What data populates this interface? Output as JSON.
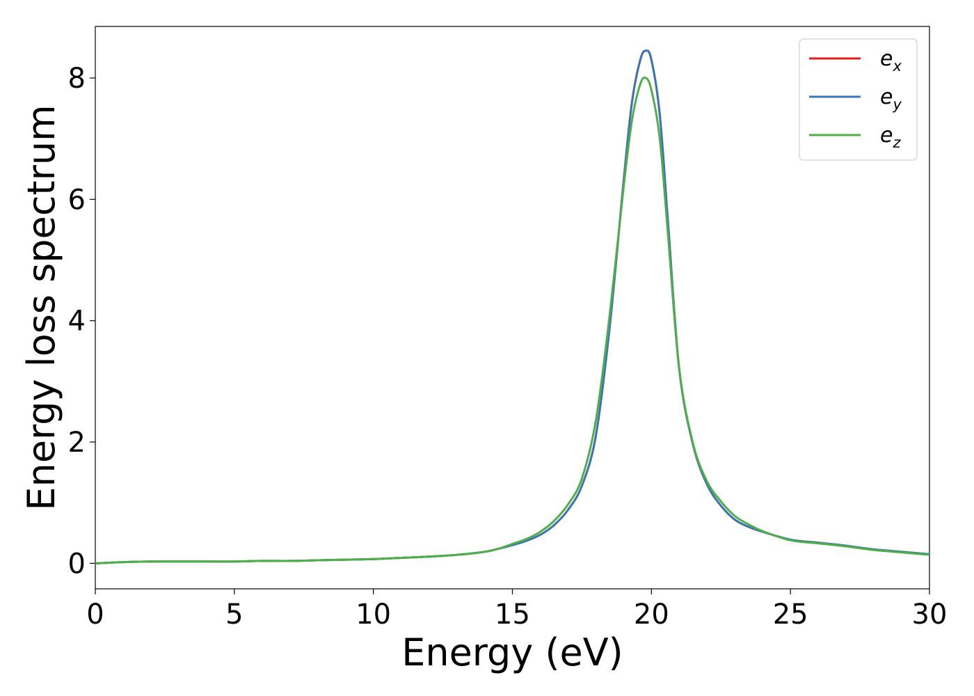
{
  "chart_data": {
    "type": "line",
    "xlabel": "Energy (eV)",
    "ylabel": "Energy loss spectrum",
    "xlim": [
      0,
      30
    ],
    "ylim": [
      -0.42,
      8.85
    ],
    "xticks": [
      0,
      5,
      10,
      15,
      20,
      25,
      30
    ],
    "yticks": [
      0,
      2,
      4,
      6,
      8
    ],
    "xtick_labels": [
      "0",
      "5",
      "10",
      "15",
      "20",
      "25",
      "30"
    ],
    "ytick_labels": [
      "0",
      "2",
      "4",
      "6",
      "8"
    ],
    "grid": false,
    "legend_position": "top-right",
    "series": [
      {
        "name": "e_x",
        "legend_base": "e",
        "legend_sub": "x",
        "color": "#e41a1c",
        "x": [
          0,
          0.5,
          1,
          2,
          3,
          4,
          5,
          6,
          7,
          8,
          9,
          10,
          11,
          12,
          13,
          14,
          14.5,
          15,
          15.5,
          16,
          16.5,
          17,
          17.5,
          18,
          18.5,
          19,
          19.3,
          19.6,
          19.8,
          20,
          20.3,
          20.6,
          21,
          21.5,
          22,
          22.5,
          23,
          23.5,
          24,
          25,
          26,
          27,
          28,
          29,
          30
        ],
        "y": [
          0.0,
          0.01,
          0.02,
          0.03,
          0.03,
          0.03,
          0.03,
          0.04,
          0.04,
          0.05,
          0.06,
          0.07,
          0.09,
          0.11,
          0.14,
          0.19,
          0.24,
          0.3,
          0.37,
          0.47,
          0.63,
          0.88,
          1.28,
          2.1,
          3.9,
          6.3,
          7.6,
          8.3,
          8.45,
          8.3,
          7.4,
          5.6,
          3.2,
          1.95,
          1.3,
          0.95,
          0.72,
          0.6,
          0.52,
          0.39,
          0.34,
          0.29,
          0.23,
          0.19,
          0.15
        ]
      },
      {
        "name": "e_y",
        "legend_base": "e",
        "legend_sub": "y",
        "color": "#3a77b5",
        "x": [
          0,
          0.5,
          1,
          2,
          3,
          4,
          5,
          6,
          7,
          8,
          9,
          10,
          11,
          12,
          13,
          14,
          14.5,
          15,
          15.5,
          16,
          16.5,
          17,
          17.5,
          18,
          18.5,
          19,
          19.3,
          19.6,
          19.8,
          20,
          20.3,
          20.6,
          21,
          21.5,
          22,
          22.5,
          23,
          23.5,
          24,
          25,
          26,
          27,
          28,
          29,
          30
        ],
        "y": [
          0.0,
          0.01,
          0.02,
          0.03,
          0.03,
          0.03,
          0.03,
          0.04,
          0.04,
          0.05,
          0.06,
          0.07,
          0.09,
          0.11,
          0.14,
          0.19,
          0.24,
          0.3,
          0.37,
          0.47,
          0.63,
          0.88,
          1.28,
          2.1,
          3.9,
          6.3,
          7.6,
          8.3,
          8.45,
          8.3,
          7.4,
          5.6,
          3.2,
          1.95,
          1.3,
          0.95,
          0.72,
          0.6,
          0.52,
          0.39,
          0.34,
          0.29,
          0.23,
          0.19,
          0.15
        ]
      },
      {
        "name": "e_z",
        "legend_base": "e",
        "legend_sub": "z",
        "color": "#4daf4a",
        "x": [
          0,
          0.5,
          1,
          2,
          3,
          4,
          5,
          6,
          7,
          8,
          9,
          10,
          11,
          12,
          13,
          14,
          14.5,
          15,
          15.5,
          16,
          16.5,
          17,
          17.5,
          18,
          18.5,
          19,
          19.3,
          19.6,
          19.8,
          20,
          20.3,
          20.6,
          21,
          21.5,
          22,
          22.5,
          23,
          23.5,
          24,
          25,
          26,
          27,
          28,
          29,
          30
        ],
        "y": [
          0.0,
          0.01,
          0.02,
          0.03,
          0.03,
          0.03,
          0.03,
          0.04,
          0.04,
          0.05,
          0.06,
          0.07,
          0.09,
          0.11,
          0.14,
          0.19,
          0.24,
          0.32,
          0.4,
          0.52,
          0.7,
          0.97,
          1.4,
          2.35,
          4.1,
          6.2,
          7.3,
          7.9,
          8.0,
          7.8,
          7.0,
          5.4,
          3.2,
          1.97,
          1.35,
          1.02,
          0.78,
          0.64,
          0.53,
          0.38,
          0.33,
          0.28,
          0.22,
          0.18,
          0.14
        ]
      }
    ]
  }
}
